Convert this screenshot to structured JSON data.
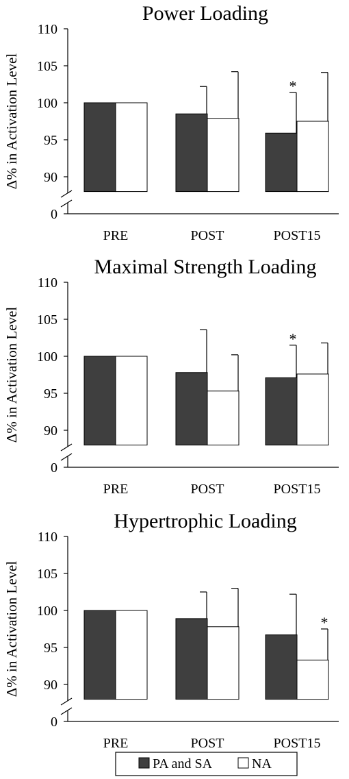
{
  "colors": {
    "pa_sa": "#3f3f3f",
    "na": "#ffffff",
    "stroke": "#000000"
  },
  "chart_data": [
    {
      "type": "bar",
      "title": "Power Loading",
      "ylabel": "Δ% in Activation Level",
      "categories": [
        "PRE",
        "POST",
        "POST15"
      ],
      "yticks": [
        "110",
        "105",
        "100",
        "95",
        "90",
        "0"
      ],
      "ylim": [
        88,
        110
      ],
      "axis_break": true,
      "series": [
        {
          "name": "PA and SA",
          "values": [
            100,
            98.5,
            95.9
          ],
          "errors": [
            0,
            3.7,
            5.5
          ],
          "significant": [
            false,
            false,
            true
          ]
        },
        {
          "name": "NA",
          "values": [
            100,
            97.9,
            97.5
          ],
          "errors": [
            0,
            6.3,
            6.6
          ],
          "significant": [
            false,
            false,
            false
          ]
        }
      ],
      "annotation": "*"
    },
    {
      "type": "bar",
      "title": "Maximal Strength Loading",
      "ylabel": "Δ% in Activation Level",
      "categories": [
        "PRE",
        "POST",
        "POST15"
      ],
      "yticks": [
        "110",
        "105",
        "100",
        "95",
        "90",
        "0"
      ],
      "ylim": [
        88,
        110
      ],
      "axis_break": true,
      "series": [
        {
          "name": "PA and SA",
          "values": [
            100,
            97.8,
            97.1
          ],
          "errors": [
            0,
            5.8,
            4.4
          ],
          "significant": [
            false,
            false,
            true
          ]
        },
        {
          "name": "NA",
          "values": [
            100,
            95.3,
            97.6
          ],
          "errors": [
            0,
            4.9,
            4.2
          ],
          "significant": [
            false,
            false,
            false
          ]
        }
      ],
      "annotation": "*"
    },
    {
      "type": "bar",
      "title": "Hypertrophic Loading",
      "ylabel": "Δ% in Activation Level",
      "categories": [
        "PRE",
        "POST",
        "POST15"
      ],
      "yticks": [
        "110",
        "105",
        "100",
        "95",
        "90",
        "0"
      ],
      "ylim": [
        88,
        110
      ],
      "axis_break": true,
      "series": [
        {
          "name": "PA and SA",
          "values": [
            100,
            98.9,
            96.7
          ],
          "errors": [
            0,
            3.6,
            5.5
          ],
          "significant": [
            false,
            false,
            false
          ]
        },
        {
          "name": "NA",
          "values": [
            100,
            97.8,
            93.3
          ],
          "errors": [
            0,
            5.2,
            4.2
          ],
          "significant": [
            false,
            false,
            true
          ]
        }
      ],
      "annotation": "*"
    }
  ],
  "legend": {
    "placement": "bottom",
    "items": [
      {
        "label": "PA and SA"
      },
      {
        "label": "NA"
      }
    ]
  }
}
